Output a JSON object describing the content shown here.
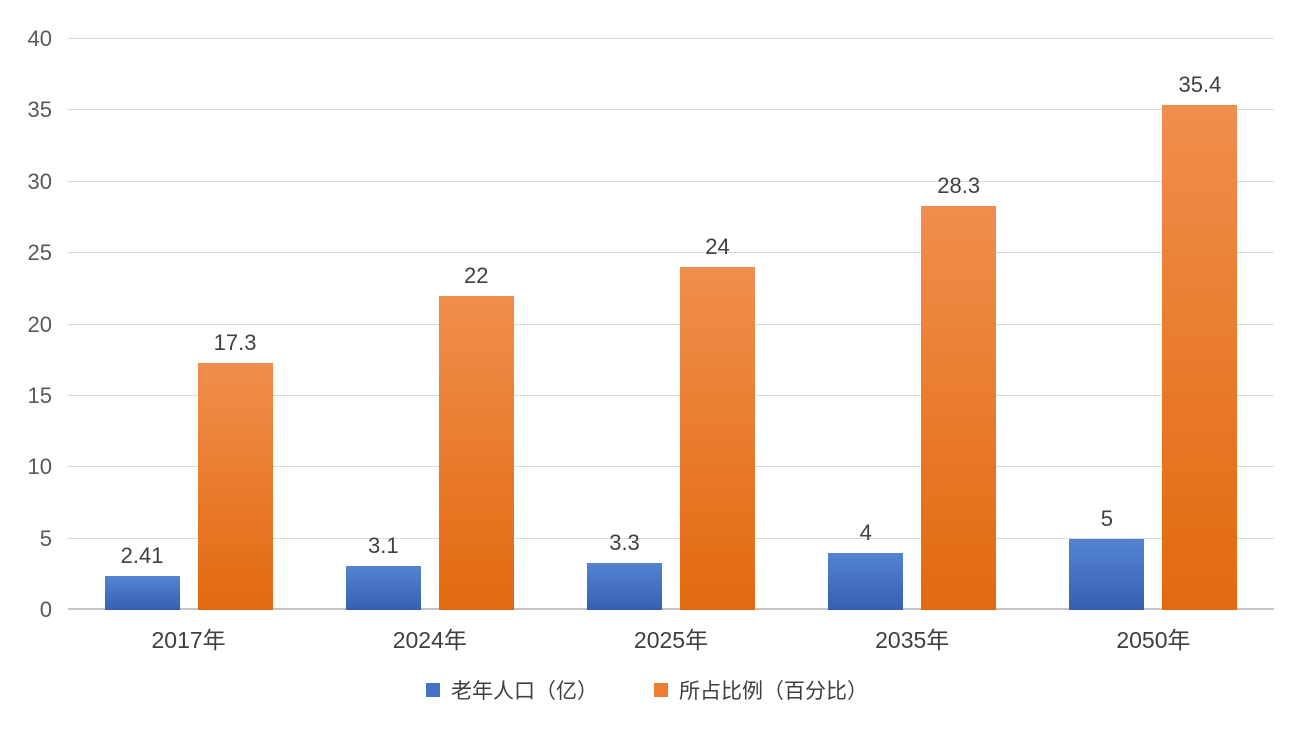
{
  "chart_data": {
    "type": "bar",
    "title": "",
    "xlabel": "",
    "ylabel": "",
    "categories": [
      "2017年",
      "2024年",
      "2025年",
      "2035年",
      "2050年"
    ],
    "series": [
      {
        "name": "老年人口（亿）",
        "values": [
          2.41,
          3.1,
          3.3,
          4,
          5
        ],
        "value_labels": [
          "2.41",
          "3.1",
          "3.3",
          "4",
          "5"
        ],
        "legend_color": "#4472C4",
        "color_top": "#5484D1",
        "color_bottom": "#3560B2"
      },
      {
        "name": "所占比例（百分比）",
        "values": [
          17.3,
          22,
          24,
          28.3,
          35.4
        ],
        "value_labels": [
          "17.3",
          "22",
          "24",
          "28.3",
          "35.4"
        ],
        "legend_color": "#ED7D31",
        "color_top": "#F08E4C",
        "color_bottom": "#E2690F"
      }
    ],
    "ylim": [
      0,
      40
    ],
    "ytick_step": 5,
    "yticks": [
      "0",
      "5",
      "10",
      "15",
      "20",
      "25",
      "30",
      "35",
      "40"
    ],
    "grid": true,
    "legend_position": "bottom",
    "colors": {
      "gridline": "#D9D9D9",
      "axis_line": "#C6C6C6",
      "tick_label": "#595959",
      "data_label": "#404040",
      "background": "#FFFFFF"
    }
  }
}
